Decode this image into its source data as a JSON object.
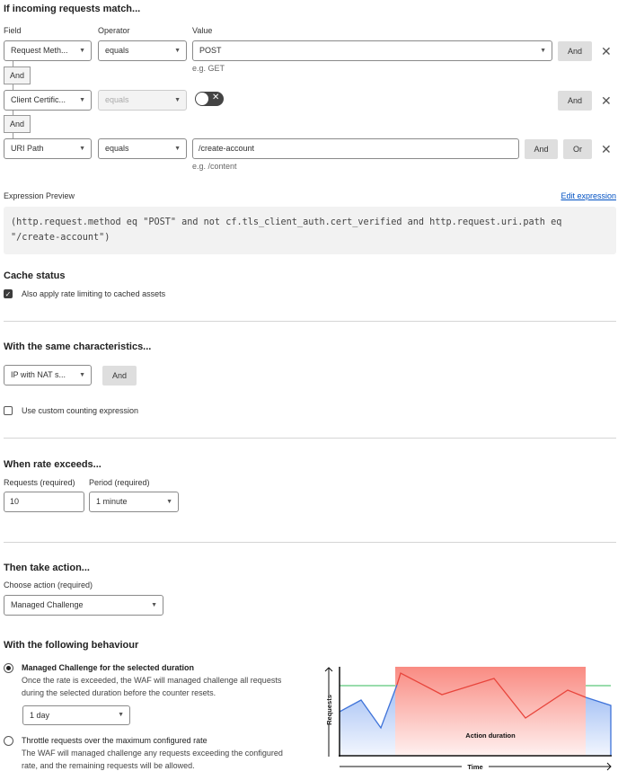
{
  "match": {
    "title": "If incoming requests match...",
    "field_label": "Field",
    "operator_label": "Operator",
    "value_label": "Value",
    "rows": [
      {
        "field": "Request Meth...",
        "operator": "equals",
        "value": "POST",
        "hint": "e.g. GET",
        "and": "And"
      },
      {
        "field": "Client Certific...",
        "operator": "equals",
        "toggle": false,
        "and": "And"
      },
      {
        "field": "URI Path",
        "operator": "equals",
        "value": "/create-account",
        "hint": "e.g. /content",
        "and": "And",
        "or": "Or"
      }
    ],
    "connector": "And"
  },
  "expression": {
    "label": "Expression Preview",
    "edit_link": "Edit expression",
    "code": "(http.request.method eq \"POST\" and not cf.tls_client_auth.cert_verified and http.request.uri.path eq \"/create-account\")"
  },
  "cache": {
    "title": "Cache status",
    "checkbox_label": "Also apply rate limiting to cached assets",
    "checked": true
  },
  "characteristics": {
    "title": "With the same characteristics...",
    "select": "IP with NAT s...",
    "and": "And",
    "custom_label": "Use custom counting expression",
    "custom_checked": false
  },
  "rate": {
    "title": "When rate exceeds...",
    "requests_label": "Requests (required)",
    "requests_value": "10",
    "period_label": "Period (required)",
    "period_value": "1 minute"
  },
  "action": {
    "title": "Then take action...",
    "choose_label": "Choose action (required)",
    "selected": "Managed Challenge"
  },
  "behaviour": {
    "title": "With the following behaviour",
    "option1": {
      "title": "Managed Challenge for the selected duration",
      "desc1": "Once the rate is exceeded, the WAF will managed challenge all requests",
      "desc2": "during the selected duration before the counter resets.",
      "duration": "1 day",
      "selected": true
    },
    "option2": {
      "title": "Throttle requests over the maximum configured rate",
      "desc1": "The WAF will managed challenge any requests exceeding the configured",
      "desc2": "rate, and the remaining requests will be allowed.",
      "selected": false
    },
    "illustration": {
      "y_label": "Requests",
      "x_label": "Time",
      "region_label": "Action duration",
      "colors": {
        "threshold": "#5cc77a",
        "normal": "#3f73d9",
        "exceeded": "#e8453c",
        "region": "#f98b82"
      }
    }
  }
}
